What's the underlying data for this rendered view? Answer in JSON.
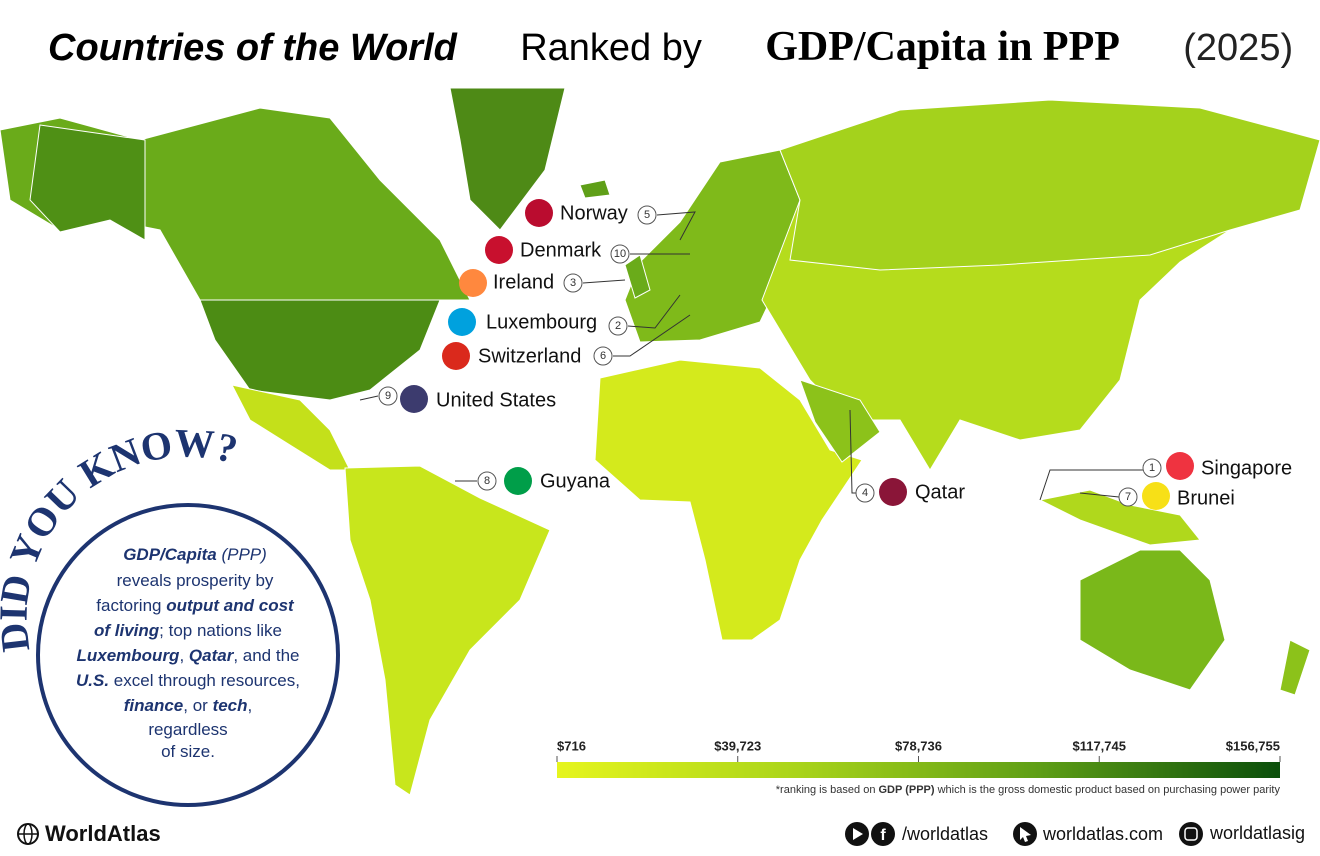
{
  "title": {
    "italic": "Countries of the World",
    "middle": " Ranked by ",
    "bold": "GDP/Capita in PPP",
    "year": " (2025)"
  },
  "labels": [
    {
      "rank": 5,
      "name": "Norway"
    },
    {
      "rank": 10,
      "name": "Denmark"
    },
    {
      "rank": 3,
      "name": "Ireland"
    },
    {
      "rank": 2,
      "name": "Luxembourg"
    },
    {
      "rank": 6,
      "name": "Switzerland"
    },
    {
      "rank": 9,
      "name": "United States"
    },
    {
      "rank": 8,
      "name": "Guyana"
    },
    {
      "rank": 4,
      "name": "Qatar"
    },
    {
      "rank": 1,
      "name": "Singapore"
    },
    {
      "rank": 7,
      "name": "Brunei"
    }
  ],
  "did_you_know": {
    "heading": "DID YOU KNOW?",
    "lines": [
      [
        "GDP/Capita",
        " (PPP)"
      ],
      [
        "reveals prosperity by"
      ],
      [
        "factoring ",
        "output and cost"
      ],
      [
        "of living",
        "; top nations like"
      ],
      [
        "Luxembourg",
        ", ",
        "Qatar",
        ", and the"
      ],
      [
        "U.S.",
        " excel through resources,"
      ],
      [
        "finance",
        ", or ",
        "tech",
        ","
      ],
      [
        "regardless"
      ],
      [
        "of size."
      ]
    ]
  },
  "color_scale": {
    "xlim": [
      716,
      156755
    ],
    "ticks": [
      {
        "value": 716,
        "label": "$716"
      },
      {
        "value": 39723,
        "label": "$39,723"
      },
      {
        "value": 78736,
        "label": "$78,736"
      },
      {
        "value": 117745,
        "label": "$117,745"
      },
      {
        "value": 156755,
        "label": "$156,755"
      }
    ],
    "colors": [
      "#e6f51e",
      "#a9d41a",
      "#5e9e16",
      "#0b4f0b"
    ]
  },
  "note": {
    "prefix": "*ranking is based on ",
    "bold": "GDP (PPP)",
    "suffix": " which is the gross domestic product based on purchasing power parity"
  },
  "footer": {
    "brand": "WorldAtlas",
    "social": "/worldatlas",
    "site": "worldatlas.com",
    "instagram": "worldatlasig"
  }
}
